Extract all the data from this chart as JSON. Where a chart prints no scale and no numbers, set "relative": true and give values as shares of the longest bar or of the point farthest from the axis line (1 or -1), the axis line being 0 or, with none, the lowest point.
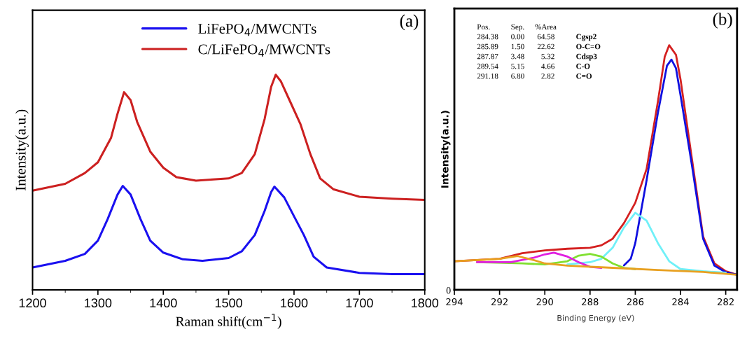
{
  "chart_data": [
    {
      "type": "line",
      "relative": true,
      "xlabel": "Raman shift(cm$^{−1}$)",
      "ylabel": "Intensity(a.u.)",
      "xlim": [
        1200,
        1800
      ],
      "xticks": [
        1200,
        1300,
        1400,
        1500,
        1600,
        1700,
        1800
      ],
      "tick_labels": "x",
      "legend": "top",
      "annotations": [
        "(a)"
      ],
      "series": [
        {
          "name": "LiFePO$_{4}$/MWCNTs",
          "color": "#1a10f0",
          "x": [
            1200,
            1250,
            1280,
            1300,
            1315,
            1330,
            1338,
            1350,
            1365,
            1380,
            1400,
            1430,
            1460,
            1500,
            1520,
            1540,
            1555,
            1565,
            1570,
            1585,
            1600,
            1615,
            1630,
            1650,
            1700,
            1750,
            1800
          ],
          "values": [
            0.104,
            0.135,
            0.167,
            0.229,
            0.33,
            0.443,
            0.483,
            0.443,
            0.33,
            0.229,
            0.173,
            0.142,
            0.135,
            0.148,
            0.179,
            0.255,
            0.367,
            0.455,
            0.48,
            0.43,
            0.342,
            0.255,
            0.154,
            0.104,
            0.079,
            0.073,
            0.073
          ]
        },
        {
          "name": "C/LiFePO$_{4}$/MWCNTs",
          "color": "#cc2020",
          "x": [
            1200,
            1250,
            1280,
            1300,
            1320,
            1330,
            1340,
            1350,
            1360,
            1380,
            1400,
            1420,
            1450,
            1500,
            1520,
            1540,
            1555,
            1565,
            1572,
            1580,
            1595,
            1610,
            1625,
            1640,
            1660,
            1700,
            1750,
            1800
          ],
          "values": [
            0.461,
            0.493,
            0.543,
            0.593,
            0.706,
            0.819,
            0.919,
            0.882,
            0.781,
            0.643,
            0.568,
            0.524,
            0.508,
            0.518,
            0.543,
            0.631,
            0.794,
            0.944,
            1.0,
            0.969,
            0.869,
            0.769,
            0.631,
            0.518,
            0.468,
            0.433,
            0.424,
            0.418
          ]
        }
      ]
    },
    {
      "type": "line",
      "relative": true,
      "xlabel": "Binding Energy (eV)",
      "ylabel": "Intensity(a.u.)",
      "xlim": [
        294,
        281.5
      ],
      "xticks": [
        294,
        292,
        290,
        288,
        286,
        284,
        282
      ],
      "tick_labels": "x",
      "annotations": [
        "(b)",
        "0",
        "Pos.",
        "Sep.",
        "%Area",
        "284.38",
        "0.00",
        "64.58",
        "Cgsp2",
        "285.89",
        "1.50",
        "22.62",
        "O-C=O",
        "287.87",
        "3.48",
        "5.32",
        "Cdsp3",
        "289.54",
        "5.15",
        "4.66",
        "C-O",
        "291.18",
        "6.80",
        "2.82",
        "C=O"
      ],
      "series": [
        {
          "color": "#d42020",
          "x": [
            294,
            292,
            291,
            290,
            289,
            288,
            287.5,
            287,
            286.5,
            286,
            285.5,
            285,
            284.7,
            284.5,
            284.2,
            284,
            283.5,
            283,
            282.5,
            282,
            281.5
          ],
          "values": [
            0.117,
            0.127,
            0.15,
            0.161,
            0.168,
            0.172,
            0.182,
            0.209,
            0.273,
            0.356,
            0.494,
            0.769,
            0.952,
            1.0,
            0.961,
            0.861,
            0.539,
            0.218,
            0.108,
            0.076,
            0.062
          ]
        },
        {
          "color": "#1010e0",
          "x": [
            286.5,
            286.2,
            286,
            285.5,
            285,
            284.6,
            284.4,
            284.2,
            284,
            283.5,
            283,
            282.5,
            282,
            281.5
          ],
          "values": [
            0.1,
            0.127,
            0.191,
            0.448,
            0.723,
            0.916,
            0.941,
            0.906,
            0.796,
            0.512,
            0.209,
            0.099,
            0.072,
            0.062
          ]
        },
        {
          "color": "#70f0f8",
          "x": [
            289,
            288,
            287.5,
            287,
            286.5,
            286,
            285.5,
            285,
            284.5,
            284,
            283,
            282
          ],
          "values": [
            0.104,
            0.113,
            0.127,
            0.172,
            0.255,
            0.315,
            0.283,
            0.191,
            0.117,
            0.085,
            0.076,
            0.07
          ]
        },
        {
          "color": "#80e030",
          "x": [
            293,
            291,
            290,
            289,
            288.5,
            288,
            287.5,
            287,
            286.5,
            286
          ],
          "values": [
            0.113,
            0.108,
            0.104,
            0.117,
            0.14,
            0.147,
            0.136,
            0.108,
            0.09,
            0.085
          ]
        },
        {
          "color": "#e020e0",
          "x": [
            293,
            291.5,
            290.5,
            290,
            289.6,
            289,
            288.5,
            288,
            287.5
          ],
          "values": [
            0.113,
            0.113,
            0.131,
            0.145,
            0.152,
            0.136,
            0.113,
            0.094,
            0.09
          ]
        },
        {
          "color": "#e8a020",
          "x": [
            294,
            292,
            291.2,
            290.5,
            290,
            289,
            287,
            285,
            283,
            281.5
          ],
          "values": [
            0.117,
            0.127,
            0.138,
            0.122,
            0.108,
            0.099,
            0.09,
            0.081,
            0.073,
            0.062
          ]
        }
      ]
    }
  ]
}
